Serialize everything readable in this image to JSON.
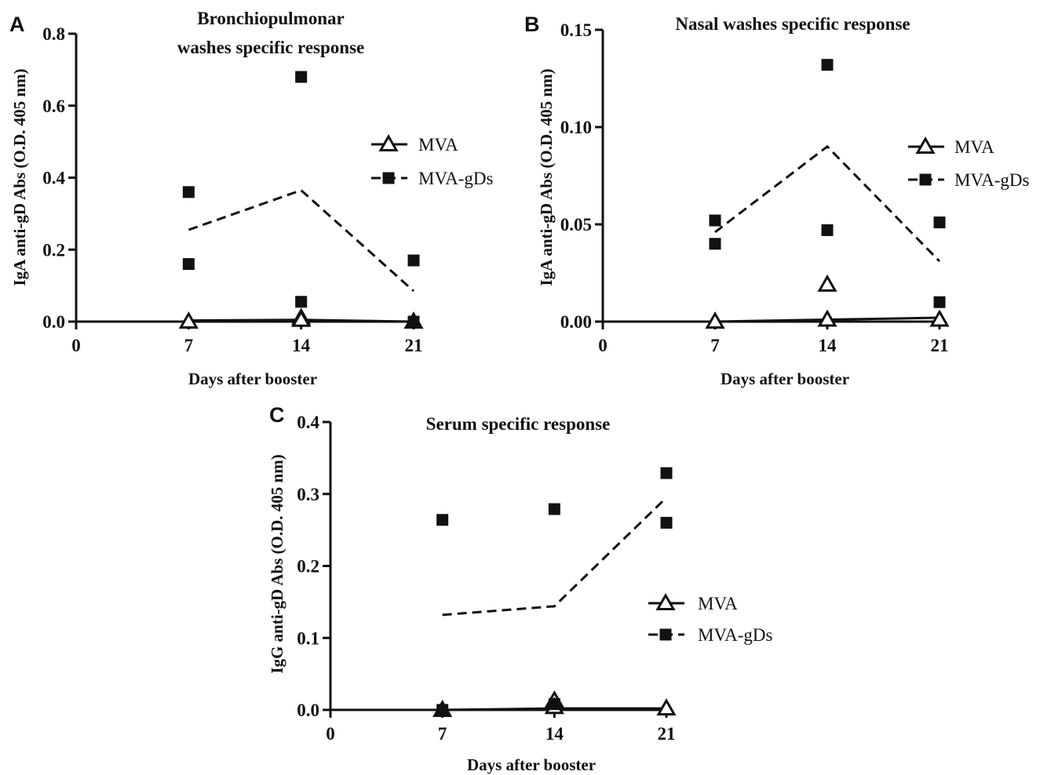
{
  "figure": {
    "panels": [
      {
        "letter": "A",
        "title_lines": [
          "Bronchiopulmonar",
          "washes specific response"
        ]
      },
      {
        "letter": "B",
        "title_lines": [
          "Nasal washes specific response"
        ]
      },
      {
        "letter": "C",
        "title_lines": [
          "Serum specific response"
        ]
      }
    ]
  },
  "chart_data": [
    {
      "type": "scatter",
      "panel": "A",
      "title": "Bronchiopulmonar washes specific response",
      "xlabel": "Days after booster",
      "ylabel": "IgA anti-gD Abs (O.D. 405 nm)",
      "xlim": [
        0,
        21
      ],
      "ylim": [
        0,
        0.8
      ],
      "xticks": [
        0,
        7,
        14,
        21
      ],
      "yticks": [
        0.0,
        0.2,
        0.4,
        0.6,
        0.8
      ],
      "ytick_labels": [
        "0.0",
        "0.2",
        "0.4",
        "0.6",
        "0.8"
      ],
      "legend_position": "right",
      "series": [
        {
          "name": "MVA",
          "marker": "open-triangle",
          "line": "solid",
          "points": [
            [
              7,
              0.0
            ],
            [
              14,
              0.01
            ],
            [
              14,
              0.005
            ],
            [
              21,
              0.0
            ]
          ],
          "mean_line": [
            [
              7,
              0.003
            ],
            [
              14,
              0.005
            ],
            [
              21,
              0.0
            ]
          ]
        },
        {
          "name": "MVA-gDs",
          "marker": "filled-square",
          "line": "dashed",
          "points": [
            [
              7,
              0.36
            ],
            [
              7,
              0.16
            ],
            [
              14,
              0.68
            ],
            [
              14,
              0.055
            ],
            [
              21,
              0.17
            ],
            [
              21,
              0.0
            ]
          ],
          "mean_line": [
            [
              7,
              0.255
            ],
            [
              14,
              0.365
            ],
            [
              21,
              0.085
            ]
          ]
        }
      ]
    },
    {
      "type": "scatter",
      "panel": "B",
      "title": "Nasal washes specific response",
      "xlabel": "Days after booster",
      "ylabel": "IgA anti-gD Abs (O.D. 405 nm)",
      "xlim": [
        0,
        21
      ],
      "ylim": [
        0,
        0.15
      ],
      "xticks": [
        0,
        7,
        14,
        21
      ],
      "yticks": [
        0.0,
        0.05,
        0.1,
        0.15
      ],
      "ytick_labels": [
        "0.00",
        "0.05",
        "0.10",
        "0.15"
      ],
      "legend_position": "right",
      "series": [
        {
          "name": "MVA",
          "marker": "open-triangle",
          "line": "solid",
          "points": [
            [
              7,
              0.0
            ],
            [
              14,
              0.019
            ],
            [
              14,
              0.001
            ],
            [
              21,
              0.001
            ]
          ],
          "mean_line": [
            [
              7,
              0.0
            ],
            [
              14,
              0.001
            ],
            [
              21,
              0.002
            ]
          ]
        },
        {
          "name": "MVA-gDs",
          "marker": "filled-square",
          "line": "dashed",
          "points": [
            [
              7,
              0.052
            ],
            [
              7,
              0.04
            ],
            [
              14,
              0.132
            ],
            [
              14,
              0.047
            ],
            [
              21,
              0.051
            ],
            [
              21,
              0.01
            ]
          ],
          "mean_line": [
            [
              7,
              0.046
            ],
            [
              14,
              0.09
            ],
            [
              21,
              0.031
            ]
          ]
        }
      ]
    },
    {
      "type": "scatter",
      "panel": "C",
      "title": "Serum specific response",
      "xlabel": "Days after booster",
      "ylabel": "IgG anti-gD Abs (O.D. 405 nm)",
      "xlim": [
        0,
        21
      ],
      "ylim": [
        0,
        0.4
      ],
      "xticks": [
        0,
        7,
        14,
        21
      ],
      "yticks": [
        0.0,
        0.1,
        0.2,
        0.3,
        0.4
      ],
      "ytick_labels": [
        "0.0",
        "0.1",
        "0.2",
        "0.3",
        "0.4"
      ],
      "legend_position": "right",
      "series": [
        {
          "name": "MVA",
          "marker": "open-triangle",
          "line": "solid",
          "points": [
            [
              7,
              0.0
            ],
            [
              14,
              0.013
            ],
            [
              14,
              0.004
            ],
            [
              21,
              0.002
            ]
          ],
          "mean_line": [
            [
              7,
              0.0
            ],
            [
              14,
              0.002
            ],
            [
              21,
              0.002
            ]
          ]
        },
        {
          "name": "MVA-gDs",
          "marker": "filled-square",
          "line": "dashed",
          "points": [
            [
              7,
              0.264
            ],
            [
              7,
              0.0
            ],
            [
              14,
              0.279
            ],
            [
              14,
              0.008
            ],
            [
              21,
              0.329
            ],
            [
              21,
              0.26
            ]
          ],
          "mean_line": [
            [
              7,
              0.132
            ],
            [
              14,
              0.144
            ],
            [
              21,
              0.295
            ]
          ]
        }
      ]
    }
  ]
}
